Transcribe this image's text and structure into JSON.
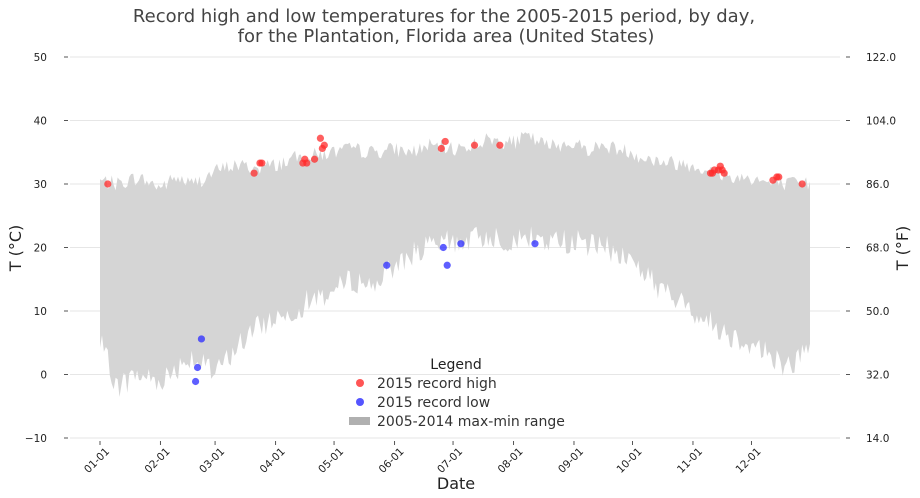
{
  "chart_data": {
    "type": "scatter",
    "title": "Record high and low temperatures for the 2005-2015 period, by day,",
    "subtitle": "for the Plantation, Florida area (United States)",
    "xlabel": "Date",
    "ylabel": "T (°C)",
    "ylabel_right": "T (°F)",
    "ylim": [
      -10,
      50
    ],
    "ylim_right": [
      14,
      122
    ],
    "x_ticks": [
      "01-01",
      "02-01",
      "03-01",
      "04-01",
      "05-01",
      "06-01",
      "07-01",
      "08-01",
      "09-01",
      "10-01",
      "11-01",
      "12-01"
    ],
    "y_ticks": [
      "−10",
      "0",
      "10",
      "20",
      "30",
      "40",
      "50"
    ],
    "y_ticks_right": [
      "14.0",
      "32.0",
      "50.0",
      "68.0",
      "86.0",
      "104.0",
      "122.0"
    ],
    "grid": true,
    "legend": {
      "title": "Legend",
      "placement": "bottom-center",
      "entries": [
        "2015 record high",
        "2015 record low",
        "2005-2014 max-min range"
      ]
    },
    "colors": {
      "high": "#ff2a2a",
      "low": "#2a2aff",
      "range": "#d5d5d5",
      "legend_range": "#b0b0b0",
      "grid": "#e6e6e6"
    },
    "range_series": {
      "name": "2005-2014 max-min range",
      "days": [
        1,
        10,
        20,
        32,
        40,
        48,
        55,
        60,
        70,
        80,
        91,
        100,
        110,
        121,
        130,
        140,
        152,
        160,
        170,
        182,
        190,
        200,
        213,
        220,
        230,
        244,
        250,
        260,
        274,
        280,
        290,
        305,
        315,
        325,
        335,
        345,
        355,
        365
      ],
      "max": [
        30.5,
        30,
        31,
        29.5,
        31,
        30,
        31,
        32,
        33,
        32.5,
        33,
        34,
        34.5,
        35,
        35.5,
        35,
        35.5,
        35,
        36,
        35.5,
        36,
        37,
        36.5,
        37.5,
        36,
        36.5,
        35.5,
        36,
        35,
        34,
        33.5,
        33,
        32,
        31,
        31,
        30,
        30,
        30
      ],
      "min": [
        5,
        -2,
        0,
        -1,
        1,
        3,
        1,
        0,
        4,
        7,
        9,
        10,
        12,
        13,
        15,
        14,
        17,
        19,
        20,
        21,
        21,
        22,
        21,
        21.5,
        21,
        21,
        20.5,
        20,
        18,
        16,
        13,
        10,
        8,
        6,
        5,
        3,
        1,
        5
      ]
    },
    "series": [
      {
        "name": "2015 record high",
        "days": [
          5,
          80,
          83,
          84,
          105,
          106,
          107,
          111,
          114,
          115,
          116,
          176,
          178,
          193,
          206,
          314,
          315,
          316,
          318,
          319,
          320,
          321,
          346,
          348,
          349,
          361
        ],
        "values": [
          30.0,
          31.7,
          33.3,
          33.3,
          33.3,
          33.9,
          33.3,
          33.9,
          37.2,
          35.6,
          36.1,
          35.6,
          36.7,
          36.1,
          36.1,
          31.7,
          31.7,
          32.2,
          32.2,
          32.8,
          32.2,
          31.7,
          30.6,
          31.1,
          31.1,
          30.0
        ]
      },
      {
        "name": "2015 record low",
        "days": [
          50,
          51,
          53,
          148,
          177,
          179,
          186,
          224
        ],
        "values": [
          -1.1,
          1.1,
          5.6,
          17.2,
          20.0,
          17.2,
          20.6,
          20.6
        ]
      }
    ]
  }
}
